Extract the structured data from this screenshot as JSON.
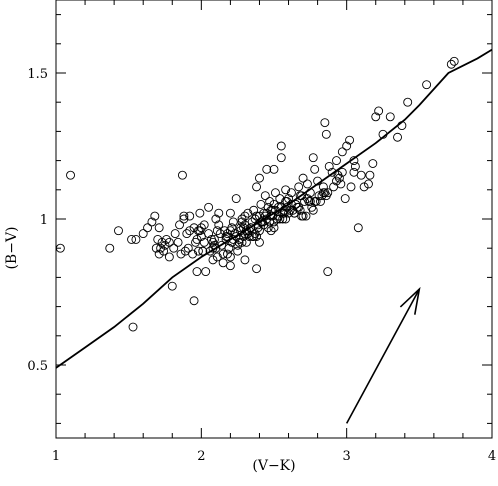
{
  "chart_data": {
    "type": "scatter",
    "title": "",
    "xlabel": "(V−K)",
    "ylabel": "(B−V)",
    "xlim": [
      1,
      4
    ],
    "ylim": [
      0.25,
      1.75
    ],
    "grid": false,
    "xticks": [
      {
        "value": 1,
        "label": "1"
      },
      {
        "value": 2,
        "label": "2"
      },
      {
        "value": 3,
        "label": "3"
      },
      {
        "value": 4,
        "label": "4"
      }
    ],
    "yticks": [
      {
        "value": 0.5,
        "label": "0.5"
      },
      {
        "value": 1,
        "label": "1"
      },
      {
        "value": 1.5,
        "label": "1.5"
      }
    ],
    "series": [
      {
        "kind": "markers",
        "marker": "open-circle",
        "x": [
          1.03,
          1.1,
          1.37,
          1.43,
          1.52,
          1.53,
          1.6,
          1.63,
          1.66,
          1.68,
          1.69,
          1.7,
          1.71,
          1.73,
          1.74,
          1.75,
          1.76,
          1.78,
          1.8,
          1.82,
          1.85,
          1.87,
          1.88,
          1.9,
          1.92,
          1.94,
          1.95,
          1.96,
          1.97,
          1.98,
          1.99,
          2.0,
          2.01,
          2.02,
          2.03,
          2.05,
          2.06,
          2.08,
          2.09,
          2.1,
          2.11,
          2.12,
          2.13,
          2.14,
          2.15,
          2.16,
          2.17,
          2.18,
          2.19,
          2.2,
          2.21,
          2.22,
          2.23,
          2.24,
          2.25,
          2.26,
          2.27,
          2.28,
          2.29,
          2.3,
          2.31,
          2.32,
          2.33,
          2.34,
          2.35,
          2.36,
          2.37,
          2.38,
          2.39,
          2.4,
          2.41,
          2.42,
          2.43,
          2.44,
          2.45,
          2.46,
          2.47,
          2.48,
          2.49,
          2.5,
          2.51,
          2.52,
          2.53,
          2.54,
          2.55,
          2.56,
          2.57,
          2.58,
          2.59,
          2.6,
          2.62,
          2.64,
          2.65,
          2.67,
          2.69,
          2.7,
          2.72,
          2.73,
          2.75,
          2.77,
          2.78,
          2.8,
          2.82,
          2.84,
          2.85,
          2.86,
          2.88,
          2.9,
          2.93,
          2.95,
          2.97,
          2.99,
          3.0,
          3.02,
          3.05,
          3.08,
          3.1,
          3.12,
          3.15,
          3.18,
          3.2,
          3.22,
          3.25,
          3.3,
          3.35,
          3.38,
          3.42,
          3.55,
          3.72,
          3.74,
          2.0,
          2.1,
          2.2,
          2.3,
          2.4,
          2.5,
          2.6,
          2.7,
          2.2,
          2.3,
          2.4,
          2.5,
          2.35,
          2.45,
          2.55,
          2.25,
          2.15,
          2.05,
          2.65,
          2.75,
          2.85,
          1.88,
          1.95,
          2.12,
          2.28,
          2.38,
          2.48,
          2.58,
          2.68,
          2.33,
          2.43,
          2.53,
          2.63,
          2.22,
          2.32,
          2.42,
          2.52,
          2.62,
          2.18,
          2.08,
          1.98,
          2.73,
          2.83,
          2.93,
          3.03,
          2.47,
          2.57,
          2.37,
          2.27,
          2.17,
          2.07,
          2.67,
          2.77,
          2.87,
          2.97,
          1.84,
          1.92,
          2.02,
          2.24,
          2.34,
          2.44,
          2.54,
          2.64,
          2.74,
          2.84,
          2.94,
          3.05,
          2.29,
          2.39,
          2.49,
          2.59,
          2.69,
          2.79,
          2.19,
          2.09,
          1.99,
          1.89,
          2.26,
          2.36,
          2.46,
          2.56,
          2.66,
          2.76,
          2.86,
          2.96,
          3.06,
          3.16,
          2.31,
          2.41,
          2.51,
          2.61,
          2.71,
          2.81,
          2.91,
          2.21,
          2.11,
          2.01,
          1.91,
          1.81,
          1.71,
          2.58,
          2.48,
          2.38,
          2.28,
          2.18,
          2.08,
          2.68,
          2.78,
          1.97,
          1.55,
          1.72,
          1.78,
          1.86,
          2.4,
          2.5,
          2.87,
          2.45,
          2.55,
          2.38,
          2.3,
          2.2
        ],
        "y": [
          0.9,
          1.15,
          0.9,
          0.96,
          0.93,
          0.63,
          0.95,
          0.97,
          0.99,
          1.01,
          0.9,
          0.93,
          0.97,
          0.92,
          0.89,
          0.91,
          0.93,
          0.87,
          0.77,
          0.95,
          0.98,
          1.15,
          1.01,
          0.95,
          1.01,
          0.88,
          0.72,
          0.92,
          0.93,
          0.96,
          1.02,
          0.94,
          0.89,
          0.92,
          0.82,
          0.95,
          0.89,
          0.86,
          0.93,
          0.9,
          0.87,
          1.02,
          0.95,
          0.91,
          0.88,
          0.96,
          0.94,
          0.88,
          0.9,
          0.96,
          0.92,
          0.99,
          0.95,
          1.07,
          0.89,
          0.93,
          0.97,
          1.0,
          0.94,
          0.98,
          0.92,
          1.02,
          0.94,
          0.97,
          0.99,
          1.03,
          1.0,
          1.11,
          0.97,
          1.01,
          1.05,
          0.99,
          1.02,
          1.08,
          1.0,
          1.04,
          1.06,
          1.01,
          1.03,
          1.05,
          1.09,
          1.0,
          1.04,
          1.07,
          1.25,
          1.02,
          1.03,
          1.1,
          1.06,
          1.07,
          1.09,
          1.02,
          1.05,
          1.11,
          1.08,
          1.14,
          1.01,
          1.12,
          1.06,
          1.21,
          1.17,
          1.13,
          1.06,
          1.09,
          1.33,
          1.29,
          1.18,
          1.16,
          1.2,
          1.14,
          1.23,
          1.07,
          1.25,
          1.27,
          1.2,
          0.97,
          1.15,
          1.11,
          1.12,
          1.19,
          1.35,
          1.37,
          1.29,
          1.35,
          1.28,
          1.32,
          1.4,
          1.46,
          1.53,
          1.54,
          0.97,
          1.0,
          1.02,
          1.01,
          0.96,
          0.99,
          1.02,
          1.01,
          0.87,
          0.95,
          0.92,
          0.97,
          0.94,
          1.02,
          1.04,
          0.91,
          0.85,
          1.04,
          1.05,
          1.09,
          1.09,
          1.0,
          0.97,
          0.98,
          0.99,
          1.01,
          1.03,
          1.06,
          1.08,
          0.96,
          0.98,
          1.01,
          1.03,
          0.93,
          0.95,
          0.99,
          1.0,
          1.05,
          0.95,
          0.92,
          0.89,
          1.07,
          1.08,
          1.13,
          1.11,
          0.99,
          1.02,
          0.95,
          0.96,
          0.93,
          0.93,
          1.04,
          1.03,
          1.09,
          1.16,
          0.92,
          0.96,
          0.98,
          0.94,
          0.97,
          1.01,
          1.0,
          1.02,
          1.06,
          1.11,
          1.15,
          1.16,
          0.97,
          0.98,
          1.01,
          1.04,
          1.01,
          1.06,
          0.9,
          0.91,
          0.96,
          0.89,
          0.92,
          0.94,
          0.97,
          1.0,
          1.04,
          1.04,
          1.08,
          1.12,
          1.18,
          1.15,
          0.96,
          0.99,
          1.03,
          1.03,
          1.06,
          1.08,
          1.11,
          0.97,
          0.96,
          0.89,
          0.9,
          0.9,
          0.88,
          1.0,
          0.96,
          0.94,
          0.92,
          0.94,
          0.9,
          1.03,
          1.06,
          0.82,
          0.93,
          0.9,
          0.92,
          0.88,
          1.14,
          1.17,
          0.82,
          1.17,
          1.21,
          0.83,
          0.86,
          0.84
        ]
      },
      {
        "kind": "line",
        "x": [
          1.0,
          1.2,
          1.4,
          1.6,
          1.8,
          2.0,
          2.2,
          2.4,
          2.6,
          2.8,
          3.0,
          3.2,
          3.4,
          3.5,
          3.7,
          3.9,
          4.0
        ],
        "y": [
          0.49,
          0.56,
          0.63,
          0.71,
          0.8,
          0.87,
          0.93,
          0.99,
          1.05,
          1.12,
          1.19,
          1.26,
          1.34,
          1.39,
          1.5,
          1.55,
          1.58
        ]
      }
    ],
    "annotations": [
      {
        "type": "arrow",
        "from": [
          3.0,
          0.3
        ],
        "to": [
          3.5,
          0.76
        ]
      }
    ]
  }
}
